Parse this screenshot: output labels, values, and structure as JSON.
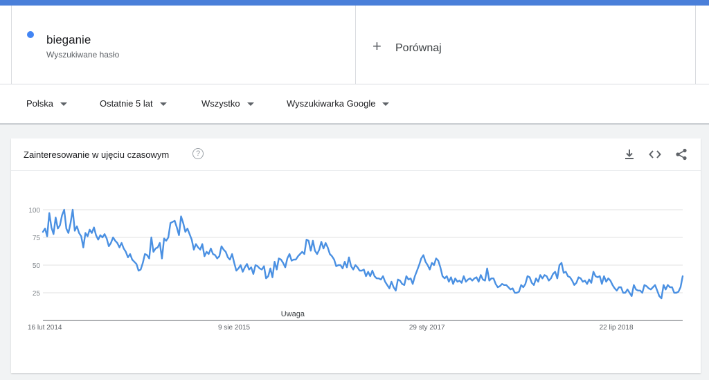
{
  "search_term": {
    "name": "bieganie",
    "subtitle": "Wyszukiwane hasło",
    "color": "#4285f4"
  },
  "compare": {
    "label": "Porównaj",
    "icon": "plus-icon"
  },
  "filters": [
    {
      "label": "Polska"
    },
    {
      "label": "Ostatnie 5 lat"
    },
    {
      "label": "Wszystko"
    },
    {
      "label": "Wyszukiwarka Google"
    }
  ],
  "card": {
    "title": "Zainteresowanie w ujęciu czasowym",
    "help_icon": "help-circle-icon",
    "actions": [
      "download-icon",
      "embed-icon",
      "share-icon"
    ]
  },
  "chart_data": {
    "type": "line",
    "title": "",
    "xlabel": "",
    "ylabel": "",
    "ylim": [
      0,
      100
    ],
    "y_ticks": [
      25,
      50,
      75,
      100
    ],
    "x_tick_labels": [
      "16 lut 2014",
      "9 sie 2015",
      "29 sty 2017",
      "22 lip 2018"
    ],
    "annotation": "Uwaga",
    "grid": true,
    "color": "#4a90e2",
    "series": [
      {
        "values": [
          80,
          83,
          76,
          97,
          84,
          78,
          93,
          83,
          86,
          95,
          100,
          83,
          79,
          88,
          100,
          81,
          85,
          79,
          76,
          66,
          79,
          76,
          82,
          79,
          84,
          77,
          73,
          77,
          75,
          78,
          74,
          67,
          70,
          75,
          72,
          70,
          66,
          70,
          65,
          62,
          57,
          60,
          55,
          53,
          51,
          45,
          46,
          52,
          60,
          59,
          56,
          75,
          62,
          65,
          66,
          70,
          56,
          74,
          72,
          75,
          88,
          89,
          90,
          84,
          77,
          94,
          88,
          80,
          83,
          78,
          73,
          64,
          69,
          66,
          64,
          69,
          58,
          62,
          60,
          65,
          60,
          59,
          56,
          58,
          67,
          64,
          62,
          57,
          55,
          60,
          52,
          45,
          47,
          50,
          44,
          48,
          51,
          46,
          48,
          42,
          50,
          49,
          47,
          46,
          49,
          38,
          40,
          47,
          39,
          53,
          46,
          56,
          55,
          52,
          48,
          56,
          60,
          54,
          55,
          55,
          58,
          60,
          62,
          60,
          73,
          72,
          63,
          72,
          63,
          60,
          64,
          71,
          65,
          70,
          66,
          60,
          58,
          55,
          49,
          50,
          50,
          47,
          53,
          48,
          57,
          49,
          46,
          50,
          48,
          45,
          45,
          46,
          40,
          44,
          40,
          45,
          40,
          38,
          38,
          37,
          40,
          35,
          32,
          29,
          35,
          30,
          27,
          37,
          36,
          33,
          32,
          40,
          37,
          38,
          33,
          40,
          45,
          50,
          56,
          59,
          53,
          50,
          46,
          52,
          50,
          56,
          54,
          48,
          40,
          38,
          40,
          35,
          39,
          33,
          38,
          35,
          36,
          34,
          40,
          35,
          37,
          38,
          36,
          38,
          39,
          35,
          41,
          37,
          36,
          47,
          36,
          38,
          38,
          33,
          30,
          31,
          33,
          32,
          32,
          30,
          28,
          29,
          25,
          25,
          26,
          32,
          30,
          33,
          40,
          39,
          34,
          32,
          38,
          35,
          41,
          38,
          41,
          40,
          36,
          38,
          42,
          44,
          38,
          50,
          52,
          43,
          44,
          40,
          39,
          36,
          32,
          34,
          39,
          38,
          35,
          36,
          33,
          37,
          34,
          44,
          40,
          39,
          40,
          33,
          40,
          35,
          38,
          36,
          32,
          29,
          27,
          30,
          30,
          25,
          25,
          28,
          25,
          22,
          32,
          28,
          27,
          27,
          25,
          32,
          31,
          29,
          28,
          30,
          32,
          27,
          22,
          20,
          32,
          28,
          32,
          30,
          30,
          25,
          25,
          26,
          30,
          40
        ]
      }
    ]
  }
}
